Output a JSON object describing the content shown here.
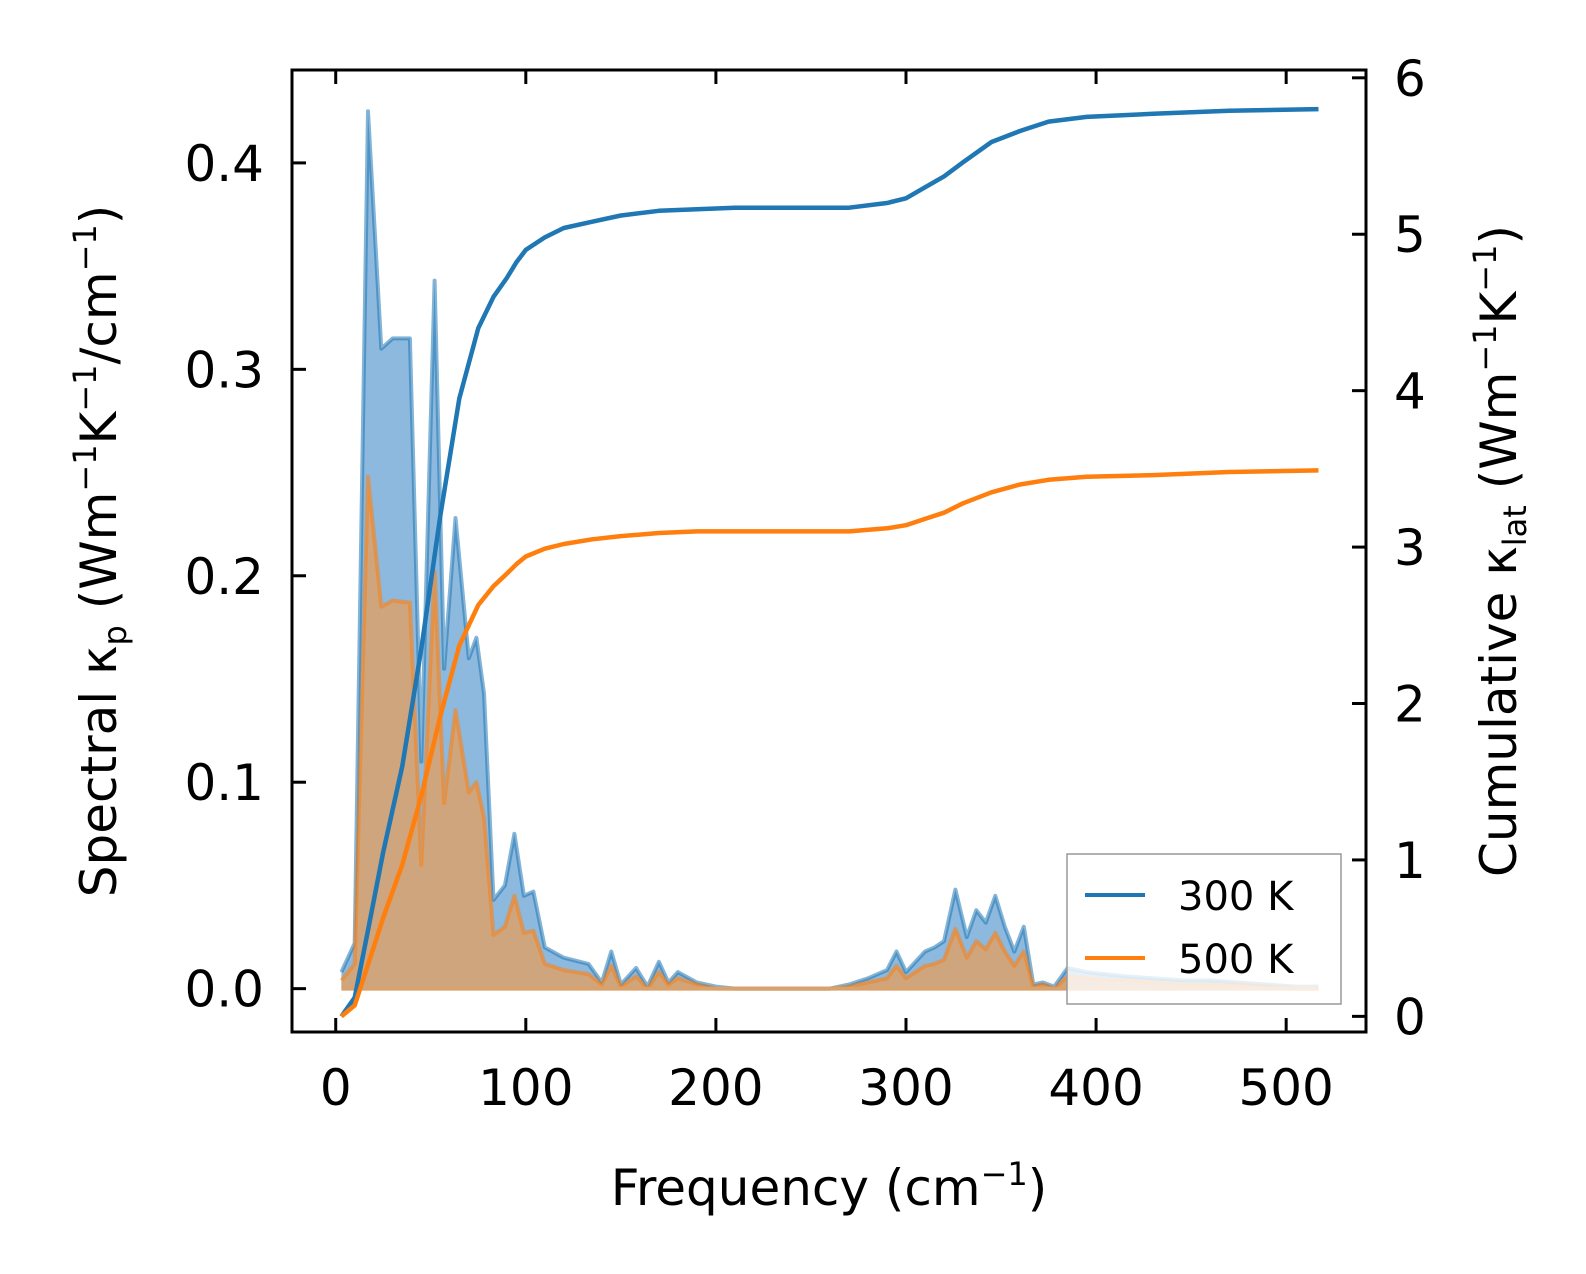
{
  "chart_data": {
    "type": "area+line",
    "xlabel": "Frequency (cm",
    "xlabel_sup": "−1",
    "xlabel_end": ")",
    "ylabel_left": {
      "pre": "Spectral κ",
      "sub": "p",
      "mid1": " (Wm",
      "sup1": "−1",
      "mid2": "K",
      "sup2": "−1",
      "mid3": "/cm",
      "sup3": "−1",
      "end": ")"
    },
    "ylabel_right": {
      "pre": "Cumulative κ",
      "sub": "lat",
      "mid1": " (Wm",
      "sup1": "−1",
      "mid2": "K",
      "sup2": "−1",
      "end": ")"
    },
    "xlim": [
      -23,
      542
    ],
    "ylim_left": [
      -0.021,
      0.445
    ],
    "ylim_right": [
      -0.1,
      6.05
    ],
    "x_ticks": [
      0,
      100,
      200,
      300,
      400,
      500
    ],
    "x_tick_labels": [
      "0",
      "100",
      "200",
      "300",
      "400",
      "500"
    ],
    "y_left_ticks": [
      0.0,
      0.1,
      0.2,
      0.3,
      0.4
    ],
    "y_left_tick_labels": [
      "0.0",
      "0.1",
      "0.2",
      "0.3",
      "0.4"
    ],
    "y_right_ticks": [
      0,
      1,
      2,
      3,
      4,
      5,
      6
    ],
    "y_right_tick_labels": [
      "0",
      "1",
      "2",
      "3",
      "4",
      "5",
      "6"
    ],
    "legend": {
      "placement": "lower-right",
      "entries": [
        "300 K",
        "500 K"
      ]
    },
    "colors": {
      "s300": "#1f77b4",
      "s500": "#ff7f0e",
      "fill300": "#7fb1d9",
      "fill500": "#d9a16b"
    },
    "series": [
      {
        "name": "300 K",
        "spectral": {
          "x": [
            3,
            10,
            17,
            24,
            30,
            39,
            45,
            52,
            57,
            63,
            70,
            74,
            78,
            83,
            89,
            94,
            99,
            104,
            110,
            120,
            133,
            140,
            145,
            150,
            158,
            164,
            170,
            175,
            180,
            190,
            200,
            210,
            260,
            270,
            280,
            290,
            295,
            300,
            310,
            315,
            320,
            326,
            332,
            337,
            342,
            347,
            352,
            357,
            362,
            367,
            372,
            378,
            385,
            395,
            405,
            415,
            430,
            445,
            460,
            475,
            490,
            505,
            517
          ],
          "y": [
            0.008,
            0.022,
            0.425,
            0.31,
            0.315,
            0.315,
            0.11,
            0.343,
            0.155,
            0.228,
            0.16,
            0.17,
            0.143,
            0.043,
            0.05,
            0.075,
            0.045,
            0.047,
            0.02,
            0.015,
            0.012,
            0.003,
            0.018,
            0.002,
            0.01,
            0.001,
            0.013,
            0.003,
            0.008,
            0.003,
            0.001,
            0.0,
            0.0,
            0.002,
            0.005,
            0.009,
            0.018,
            0.008,
            0.018,
            0.02,
            0.023,
            0.048,
            0.025,
            0.038,
            0.032,
            0.045,
            0.03,
            0.018,
            0.03,
            0.002,
            0.003,
            0.001,
            0.01,
            0.008,
            0.007,
            0.006,
            0.005,
            0.004,
            0.004,
            0.003,
            0.002,
            0.001,
            0.001
          ]
        },
        "cumulative": {
          "x": [
            3,
            10,
            17,
            25,
            35,
            45,
            55,
            65,
            75,
            83,
            90,
            95,
            100,
            110,
            120,
            135,
            150,
            170,
            190,
            210,
            250,
            270,
            290,
            300,
            310,
            320,
            330,
            345,
            360,
            375,
            395,
            430,
            470,
            517
          ],
          "y": [
            0.0,
            0.12,
            0.55,
            1.05,
            1.6,
            2.35,
            3.2,
            3.95,
            4.4,
            4.6,
            4.72,
            4.82,
            4.9,
            4.98,
            5.04,
            5.08,
            5.12,
            5.15,
            5.16,
            5.17,
            5.17,
            5.17,
            5.2,
            5.23,
            5.3,
            5.37,
            5.46,
            5.59,
            5.66,
            5.72,
            5.75,
            5.77,
            5.79,
            5.8
          ]
        }
      },
      {
        "name": "500 K",
        "spectral": {
          "x": [
            3,
            10,
            17,
            24,
            30,
            39,
            45,
            52,
            57,
            63,
            70,
            74,
            78,
            83,
            89,
            94,
            99,
            104,
            110,
            120,
            133,
            140,
            145,
            150,
            158,
            164,
            170,
            175,
            180,
            190,
            200,
            210,
            260,
            270,
            280,
            290,
            295,
            300,
            310,
            315,
            320,
            326,
            332,
            337,
            342,
            347,
            352,
            357,
            362,
            367,
            372,
            378,
            385,
            395,
            405,
            415,
            430,
            445,
            460,
            475,
            490,
            505,
            517
          ],
          "y": [
            0.004,
            0.012,
            0.248,
            0.185,
            0.188,
            0.187,
            0.06,
            0.202,
            0.09,
            0.135,
            0.095,
            0.1,
            0.083,
            0.026,
            0.03,
            0.045,
            0.027,
            0.028,
            0.012,
            0.009,
            0.007,
            0.002,
            0.011,
            0.001,
            0.006,
            0.0,
            0.008,
            0.002,
            0.005,
            0.002,
            0.0,
            0.0,
            0.0,
            0.001,
            0.003,
            0.005,
            0.011,
            0.005,
            0.011,
            0.012,
            0.014,
            0.029,
            0.015,
            0.023,
            0.019,
            0.027,
            0.018,
            0.011,
            0.018,
            0.001,
            0.002,
            0.0,
            0.006,
            0.005,
            0.004,
            0.004,
            0.003,
            0.002,
            0.002,
            0.002,
            0.001,
            0.0,
            0.0
          ]
        },
        "cumulative": {
          "x": [
            3,
            10,
            17,
            25,
            35,
            45,
            55,
            65,
            75,
            83,
            90,
            95,
            100,
            110,
            120,
            135,
            150,
            170,
            190,
            210,
            250,
            270,
            290,
            300,
            310,
            320,
            330,
            345,
            360,
            375,
            395,
            430,
            470,
            517
          ],
          "y": [
            0.0,
            0.07,
            0.33,
            0.63,
            0.97,
            1.41,
            1.92,
            2.37,
            2.63,
            2.75,
            2.83,
            2.89,
            2.94,
            2.99,
            3.02,
            3.05,
            3.07,
            3.09,
            3.1,
            3.1,
            3.1,
            3.1,
            3.12,
            3.14,
            3.18,
            3.22,
            3.28,
            3.35,
            3.4,
            3.43,
            3.45,
            3.46,
            3.48,
            3.49
          ]
        }
      }
    ]
  }
}
